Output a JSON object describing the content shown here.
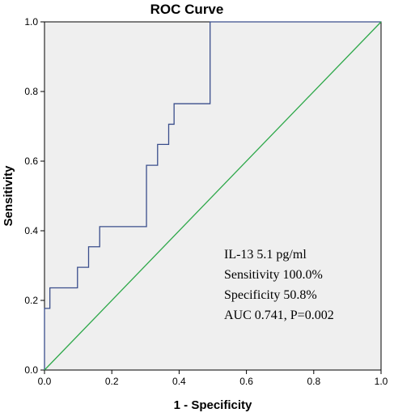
{
  "chart_data": {
    "type": "line",
    "title": "ROC Curve",
    "xlabel": "1 - Specificity",
    "ylabel": "Sensitivity",
    "xlim": [
      0,
      1
    ],
    "ylim": [
      0,
      1
    ],
    "x_ticks": [
      "0.0",
      "0.2",
      "0.4",
      "0.6",
      "0.8",
      "1.0"
    ],
    "y_ticks": [
      "0.0",
      "0.2",
      "0.4",
      "0.6",
      "0.8",
      "1.0"
    ],
    "grid": false,
    "series": [
      {
        "color": "#3a4e8c",
        "points": [
          [
            0,
            0
          ],
          [
            0,
            0.177
          ],
          [
            0.016,
            0.177
          ],
          [
            0.016,
            0.236
          ],
          [
            0.098,
            0.236
          ],
          [
            0.098,
            0.295
          ],
          [
            0.131,
            0.295
          ],
          [
            0.131,
            0.354
          ],
          [
            0.164,
            0.354
          ],
          [
            0.164,
            0.412
          ],
          [
            0.18,
            0.412
          ],
          [
            0.303,
            0.412
          ],
          [
            0.303,
            0.588
          ],
          [
            0.336,
            0.588
          ],
          [
            0.336,
            0.648
          ],
          [
            0.369,
            0.648
          ],
          [
            0.369,
            0.706
          ],
          [
            0.385,
            0.706
          ],
          [
            0.385,
            0.765
          ],
          [
            0.492,
            0.765
          ],
          [
            0.492,
            1.0
          ],
          [
            1.0,
            1.0
          ]
        ]
      },
      {
        "color": "#2ea84a",
        "points": [
          [
            0,
            0
          ],
          [
            1,
            1
          ]
        ]
      }
    ],
    "annotations": [
      "IL-13  5.1 pg/ml",
      "Sensitivity  100.0%",
      "Specificity  50.8%",
      "AUC  0.741,  P=0.002"
    ]
  }
}
